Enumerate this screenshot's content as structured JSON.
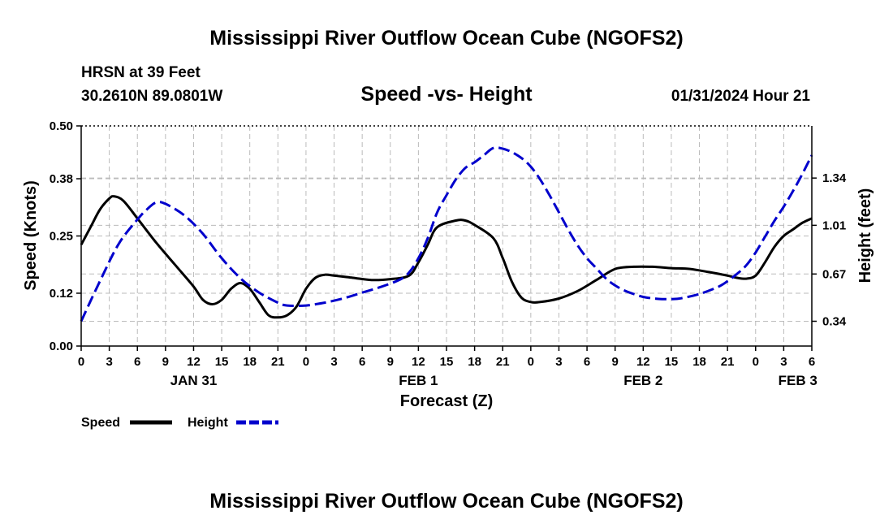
{
  "header": {
    "title": "Mississippi River Outflow Ocean Cube (NGOFS2)",
    "station": "HRSN at 39 Feet",
    "coords": "30.2610N  89.0801W",
    "subtitle": "Speed -vs- Height",
    "timestamp": "01/31/2024 Hour 21"
  },
  "footer": {
    "title": "Mississippi River Outflow Ocean Cube (NGOFS2)"
  },
  "colors": {
    "speed": "#000000",
    "height": "#0000cc",
    "grid": "#bbbbbb"
  },
  "chart_data": {
    "type": "line",
    "title": "Speed -vs- Height",
    "xlabel": "Forecast (Z)",
    "ylabel": "Speed (Knots)",
    "ylabel_right": "Height (feet)",
    "x_range_hours": [
      0,
      78
    ],
    "x_tick_labels": [
      "0",
      "3",
      "6",
      "9",
      "12",
      "15",
      "18",
      "21",
      "0",
      "3",
      "6",
      "9",
      "12",
      "15",
      "18",
      "21",
      "0",
      "3",
      "6",
      "9",
      "12",
      "15",
      "18",
      "21",
      "0",
      "3",
      "6"
    ],
    "day_labels": [
      {
        "hour": 12,
        "label": "JAN 31"
      },
      {
        "hour": 36,
        "label": "FEB 1"
      },
      {
        "hour": 60,
        "label": "FEB 2"
      },
      {
        "hour": 76.5,
        "label": "FEB 3"
      }
    ],
    "y_left": {
      "range": [
        0,
        0.5
      ],
      "ticks": [
        0.0,
        0.12,
        0.25,
        0.38,
        0.5
      ],
      "tick_labels": [
        "0.00",
        "0.12",
        "0.25",
        "0.38",
        "0.50"
      ]
    },
    "y_right": {
      "range": [
        0.167,
        1.704
      ],
      "ticks": [
        0.34,
        0.67,
        1.01,
        1.34
      ],
      "tick_labels": [
        "0.34",
        "0.67",
        "1.01",
        "1.34"
      ]
    },
    "series": [
      {
        "name": "Speed",
        "axis": "left",
        "style": "solid",
        "points": [
          [
            0,
            0.23
          ],
          [
            1,
            0.27
          ],
          [
            2,
            0.31
          ],
          [
            3,
            0.335
          ],
          [
            3.5,
            0.34
          ],
          [
            4.5,
            0.33
          ],
          [
            6,
            0.29
          ],
          [
            8,
            0.235
          ],
          [
            10,
            0.185
          ],
          [
            12,
            0.135
          ],
          [
            13,
            0.105
          ],
          [
            14,
            0.095
          ],
          [
            15,
            0.105
          ],
          [
            16,
            0.13
          ],
          [
            17,
            0.143
          ],
          [
            18,
            0.13
          ],
          [
            19,
            0.1
          ],
          [
            20,
            0.07
          ],
          [
            21,
            0.065
          ],
          [
            22,
            0.07
          ],
          [
            23,
            0.09
          ],
          [
            24,
            0.13
          ],
          [
            25,
            0.155
          ],
          [
            26,
            0.162
          ],
          [
            27,
            0.16
          ],
          [
            29,
            0.155
          ],
          [
            31,
            0.15
          ],
          [
            33,
            0.152
          ],
          [
            35,
            0.16
          ],
          [
            36,
            0.19
          ],
          [
            37,
            0.23
          ],
          [
            38,
            0.27
          ],
          [
            40,
            0.285
          ],
          [
            41,
            0.285
          ],
          [
            42,
            0.275
          ],
          [
            44,
            0.245
          ],
          [
            45,
            0.2
          ],
          [
            46,
            0.145
          ],
          [
            47,
            0.11
          ],
          [
            48,
            0.1
          ],
          [
            49,
            0.1
          ],
          [
            51,
            0.108
          ],
          [
            53,
            0.125
          ],
          [
            55,
            0.15
          ],
          [
            57,
            0.175
          ],
          [
            59,
            0.18
          ],
          [
            61,
            0.18
          ],
          [
            63,
            0.177
          ],
          [
            65,
            0.175
          ],
          [
            67,
            0.168
          ],
          [
            69,
            0.16
          ],
          [
            70,
            0.155
          ],
          [
            71,
            0.153
          ],
          [
            72,
            0.16
          ],
          [
            73,
            0.19
          ],
          [
            74,
            0.225
          ],
          [
            75,
            0.25
          ],
          [
            76,
            0.265
          ],
          [
            77,
            0.28
          ],
          [
            78,
            0.29
          ]
        ]
      },
      {
        "name": "Height",
        "axis": "right",
        "style": "dashed",
        "points": [
          [
            0,
            0.34
          ],
          [
            2,
            0.62
          ],
          [
            4,
            0.88
          ],
          [
            6,
            1.05
          ],
          [
            7,
            1.12
          ],
          [
            8,
            1.17
          ],
          [
            9,
            1.16
          ],
          [
            11,
            1.08
          ],
          [
            13,
            0.95
          ],
          [
            15,
            0.78
          ],
          [
            17,
            0.64
          ],
          [
            19,
            0.54
          ],
          [
            21,
            0.47
          ],
          [
            22,
            0.45
          ],
          [
            24,
            0.45
          ],
          [
            26,
            0.47
          ],
          [
            28,
            0.5
          ],
          [
            30,
            0.54
          ],
          [
            32,
            0.58
          ],
          [
            34,
            0.63
          ],
          [
            35,
            0.68
          ],
          [
            36,
            0.78
          ],
          [
            37,
            0.92
          ],
          [
            38,
            1.1
          ],
          [
            39,
            1.22
          ],
          [
            40,
            1.33
          ],
          [
            41,
            1.41
          ],
          [
            42,
            1.45
          ],
          [
            43,
            1.5
          ],
          [
            44,
            1.55
          ],
          [
            45,
            1.545
          ],
          [
            46,
            1.52
          ],
          [
            47,
            1.48
          ],
          [
            48,
            1.42
          ],
          [
            49,
            1.33
          ],
          [
            50,
            1.22
          ],
          [
            51,
            1.1
          ],
          [
            52,
            0.98
          ],
          [
            53,
            0.87
          ],
          [
            54,
            0.78
          ],
          [
            55,
            0.71
          ],
          [
            56,
            0.64
          ],
          [
            57,
            0.59
          ],
          [
            58,
            0.555
          ],
          [
            59,
            0.53
          ],
          [
            60,
            0.51
          ],
          [
            61,
            0.5
          ],
          [
            62,
            0.495
          ],
          [
            63,
            0.495
          ],
          [
            64,
            0.5
          ],
          [
            66,
            0.53
          ],
          [
            68,
            0.58
          ],
          [
            69,
            0.62
          ],
          [
            70,
            0.67
          ],
          [
            71,
            0.73
          ],
          [
            72,
            0.82
          ],
          [
            73,
            0.93
          ],
          [
            74,
            1.04
          ],
          [
            75,
            1.14
          ],
          [
            76,
            1.25
          ],
          [
            77,
            1.37
          ],
          [
            78,
            1.5
          ]
        ]
      }
    ],
    "legend": [
      {
        "label": "Speed",
        "style": "solid"
      },
      {
        "label": "Height",
        "style": "dashed"
      }
    ],
    "legend_position": "bottom-left",
    "grid": true
  }
}
